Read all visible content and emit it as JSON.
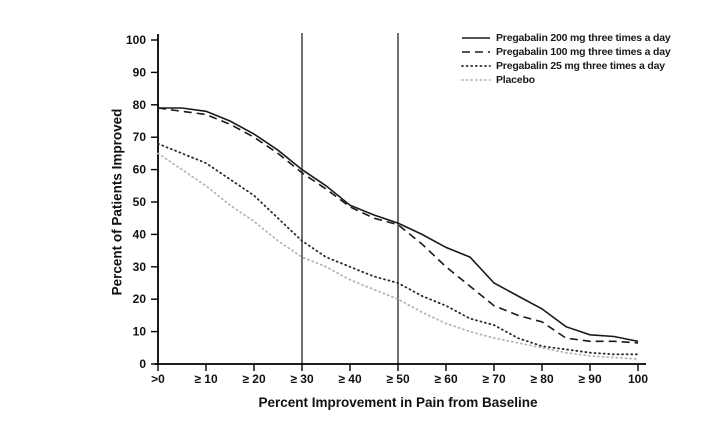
{
  "page": {
    "background": "#ffffff"
  },
  "chart_data": {
    "type": "line",
    "title": "",
    "xlabel": "Percent Improvement in Pain from Baseline",
    "ylabel": "Percent of Patients Improved",
    "xlim": [
      0,
      100
    ],
    "ylim": [
      0,
      100
    ],
    "grid": false,
    "legend_position": "top-right",
    "x_tick_labels": [
      ">0",
      "≥ 10",
      "≥ 20",
      "≥ 30",
      "≥ 40",
      "≥ 50",
      "≥ 60",
      "≥ 70",
      "≥ 80",
      "≥ 90",
      "100"
    ],
    "x_tick_values": [
      0,
      10,
      20,
      30,
      40,
      50,
      60,
      70,
      80,
      90,
      100
    ],
    "y_ticks": [
      0,
      10,
      20,
      30,
      40,
      50,
      60,
      70,
      80,
      90,
      100
    ],
    "reference_lines_x": [
      30,
      50
    ],
    "x": [
      0,
      5,
      10,
      15,
      20,
      25,
      30,
      35,
      40,
      45,
      50,
      55,
      60,
      65,
      70,
      75,
      80,
      85,
      90,
      95,
      100
    ],
    "series": [
      {
        "name": "Pregabalin 200 mg three times a day",
        "style": "solid",
        "color": "#1a1a1a",
        "values": [
          79,
          79,
          78,
          75,
          71,
          66,
          60,
          55,
          49,
          46,
          43.5,
          40,
          36,
          33,
          25,
          21,
          17,
          11.5,
          9,
          8.5,
          7
        ]
      },
      {
        "name": "Pregabalin 100 mg three times a day",
        "style": "dashed",
        "color": "#1a1a1a",
        "values": [
          79,
          78,
          77,
          74,
          70,
          65,
          59,
          54,
          48.5,
          45,
          43,
          37,
          30,
          24,
          18,
          15,
          13,
          8,
          7,
          7,
          6.5
        ]
      },
      {
        "name": "Pregabalin 25 mg three times a day",
        "style": "dotted",
        "color": "#2a2a2a",
        "values": [
          68,
          65,
          62,
          57,
          52,
          45,
          38,
          33,
          30,
          27,
          25,
          21,
          18,
          14,
          12,
          8,
          5.5,
          4.5,
          3.5,
          3,
          3
        ]
      },
      {
        "name": "Placebo",
        "style": "dotted",
        "color": "#b4b4b4",
        "values": [
          65,
          60,
          55,
          49,
          44,
          38,
          33,
          30,
          26,
          23,
          20,
          16,
          12.5,
          10,
          8,
          6.5,
          5,
          3.5,
          2.5,
          2,
          1.5
        ]
      }
    ]
  }
}
